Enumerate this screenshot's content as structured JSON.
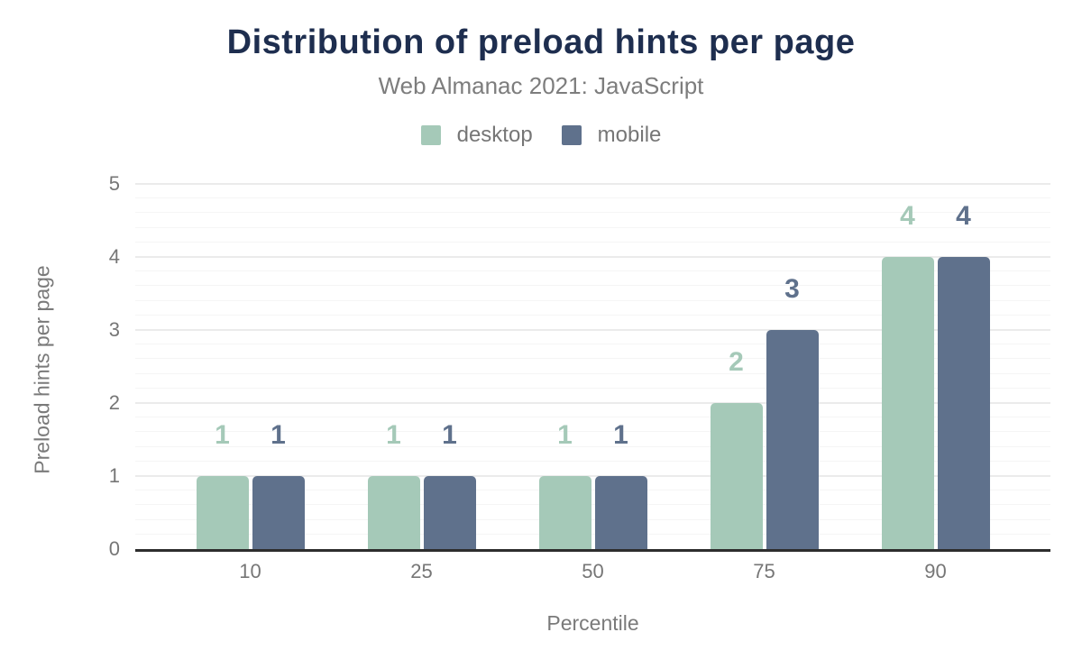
{
  "header": {
    "title": "Distribution of preload hints per page",
    "subtitle": "Web Almanac 2021: JavaScript"
  },
  "colors": {
    "title": "#1e2e4f",
    "subtitle_gray": "#7d7d7d",
    "axis_text_gray": "#767676",
    "axis_line": "#2d2d2d",
    "grid_major": "#ebebeb",
    "grid_minor": "#f5f5f5",
    "desktop": "#a5c9b8",
    "mobile": "#5f718c"
  },
  "chart_data": {
    "type": "bar",
    "title": "Distribution of preload hints per page",
    "subtitle": "Web Almanac 2021: JavaScript",
    "categories": [
      "10",
      "25",
      "50",
      "75",
      "90"
    ],
    "series": [
      {
        "name": "desktop",
        "color": "#a5c9b8",
        "values": [
          1,
          1,
          1,
          2,
          4
        ]
      },
      {
        "name": "mobile",
        "color": "#5f718c",
        "values": [
          1,
          1,
          1,
          3,
          4
        ]
      }
    ],
    "xlabel": "Percentile",
    "ylabel": "Preload hints per page",
    "ylim": [
      0,
      5
    ],
    "yticks": [
      0,
      1,
      2,
      3,
      4,
      5
    ],
    "minor_grid_step": 0.2,
    "grid": true,
    "legend_position": "top",
    "data_labels": true
  }
}
